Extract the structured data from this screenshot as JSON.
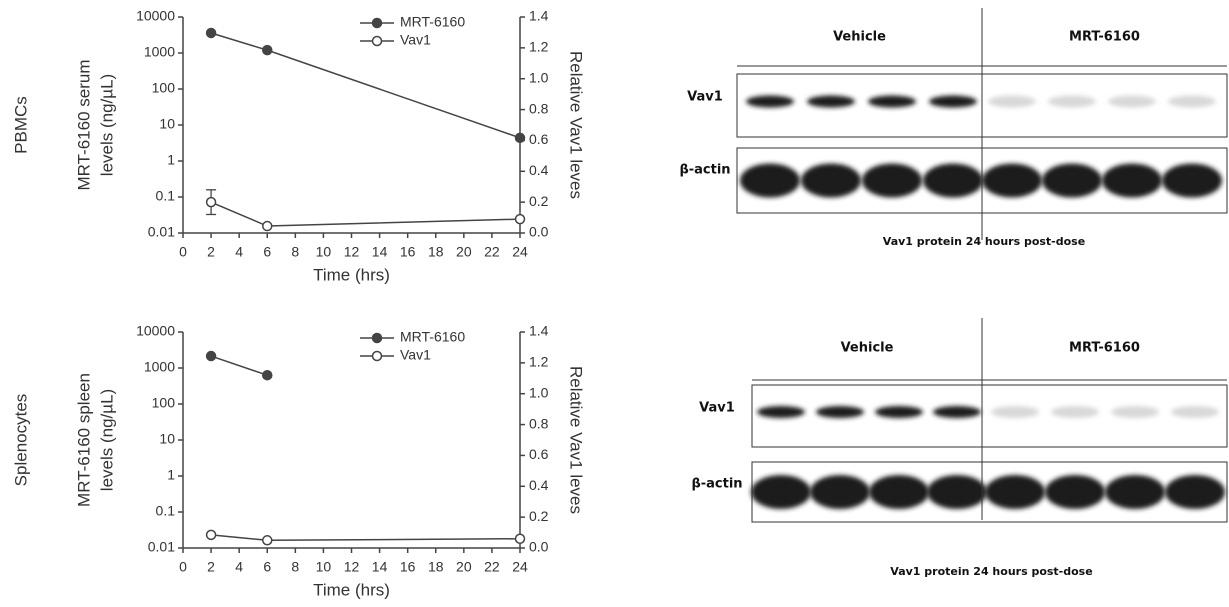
{
  "chart_data": [
    {
      "type": "line",
      "row_label": "PBMCs",
      "xlabel": "Time (hrs)",
      "ylabel": [
        "MRT-6160 serum",
        "levels (ng/µL)"
      ],
      "y2label": "Relative Vav1 leves",
      "x": [
        2,
        6,
        24
      ],
      "xlim": [
        0,
        24
      ],
      "xticks": [
        0,
        2,
        4,
        6,
        8,
        10,
        12,
        14,
        16,
        18,
        20,
        22,
        24
      ],
      "yscale": "log",
      "ylim": [
        0.01,
        10000
      ],
      "yticks": [
        0.01,
        0.1,
        1,
        10,
        100,
        1000,
        10000
      ],
      "y2lim": [
        0,
        1.4
      ],
      "y2ticks": [
        {
          "value": 0,
          "label": "0.0"
        },
        0.2,
        0.4,
        0.6,
        0.8,
        {
          "value": 1,
          "label": "1.0"
        },
        1.2,
        1.4
      ],
      "legend": "upper right",
      "series": [
        {
          "name": "MRT-6160",
          "color": "#444444",
          "marker": "filled",
          "values": [
            3600,
            1200,
            4.4
          ]
        },
        {
          "name": "Vav1",
          "color": "#444444",
          "marker": "open",
          "axis": "y2",
          "values": [
            0.2,
            0.045,
            0.09
          ],
          "errors": [
            0.08,
            null,
            null
          ]
        }
      ]
    },
    {
      "type": "line",
      "row_label": "Splenocytes",
      "xlabel": "Time (hrs)",
      "ylabel": [
        "MRT-6160 spleen",
        "levels (ng/µL)"
      ],
      "y2label": "Relative Vav1 leves",
      "x": [
        2,
        6,
        24
      ],
      "xlim": [
        0,
        24
      ],
      "xticks": [
        0,
        2,
        4,
        6,
        8,
        10,
        12,
        14,
        16,
        18,
        20,
        22,
        24
      ],
      "yscale": "log",
      "ylim": [
        0.01,
        10000
      ],
      "yticks": [
        0.01,
        0.1,
        1,
        10,
        100,
        1000,
        10000
      ],
      "y2lim": [
        0,
        1.4
      ],
      "y2ticks": [
        {
          "value": 0,
          "label": "0.0"
        },
        0.2,
        0.4,
        0.6,
        0.8,
        {
          "value": 1,
          "label": "1.0"
        },
        1.2,
        1.4
      ],
      "legend": "upper right",
      "series": [
        {
          "name": "MRT-6160",
          "color": "#444444",
          "marker": "filled",
          "values": [
            2150,
            630,
            null
          ]
        },
        {
          "name": "Vav1",
          "color": "#444444",
          "marker": "open",
          "axis": "y2",
          "values": [
            0.085,
            0.05,
            0.06
          ]
        }
      ]
    }
  ],
  "blots": [
    {
      "columns": [
        "Vehicle",
        "MRT-6160"
      ],
      "rows": [
        "Vav1",
        "β-actin"
      ],
      "caption": "Vav1 protein 24 hours post-dose"
    },
    {
      "columns": [
        "Vehicle",
        "MRT-6160"
      ],
      "rows": [
        "Vav1",
        "β-actin"
      ],
      "caption": "Vav1 protein 24 hours post-dose"
    }
  ]
}
